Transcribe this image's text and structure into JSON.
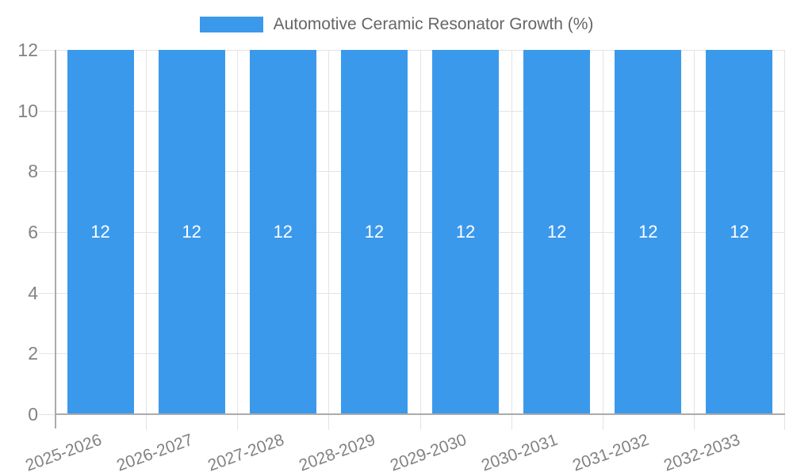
{
  "chart_data": {
    "type": "bar",
    "title": "Automotive Ceramic Resonator Growth (%)",
    "legend": {
      "position": "top",
      "entries": [
        {
          "label": "Automotive Ceramic Resonator Growth (%)",
          "color": "#3b99ec"
        }
      ]
    },
    "categories": [
      "2025-2026",
      "2026-2027",
      "2027-2028",
      "2028-2029",
      "2029-2030",
      "2030-2031",
      "2031-2032",
      "2032-2033"
    ],
    "values": [
      12,
      12,
      12,
      12,
      12,
      12,
      12,
      12
    ],
    "bar_labels": [
      "12",
      "12",
      "12",
      "12",
      "12",
      "12",
      "12",
      "12"
    ],
    "xlabel": "",
    "ylabel": "",
    "ylim": [
      0,
      12
    ],
    "yticks": [
      0,
      2,
      4,
      6,
      8,
      10,
      12
    ],
    "grid": true,
    "x_tick_rotation_deg": -20,
    "colors": {
      "bar": "#3b99ec",
      "axis": "#ababab",
      "gridline": "#e3e3e3",
      "tick_label": "#828282",
      "legend_text": "#666666",
      "data_label": "#ffffff",
      "background": "#ffffff"
    }
  }
}
